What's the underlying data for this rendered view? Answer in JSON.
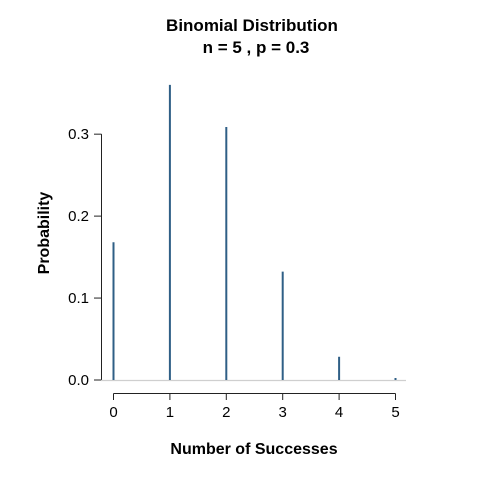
{
  "chart_data": {
    "type": "bar",
    "title": "Binomial Distribution",
    "subtitle": "n = 5 , p = 0.3",
    "xlabel": "Number of Successes",
    "ylabel": "Probability",
    "x": [
      0,
      1,
      2,
      3,
      4,
      5
    ],
    "values": [
      0.16807,
      0.36015,
      0.3087,
      0.1323,
      0.02835,
      0.00243
    ],
    "xlim": [
      0,
      5
    ],
    "ylim": [
      0,
      0.36
    ],
    "xticks": [
      "0",
      "1",
      "2",
      "3",
      "4",
      "5"
    ],
    "yticks": [
      "0.0",
      "0.1",
      "0.2",
      "0.3"
    ],
    "ytick_values": [
      0,
      0.1,
      0.2,
      0.3
    ],
    "grid": false,
    "bar_color": "#2f5f86"
  }
}
